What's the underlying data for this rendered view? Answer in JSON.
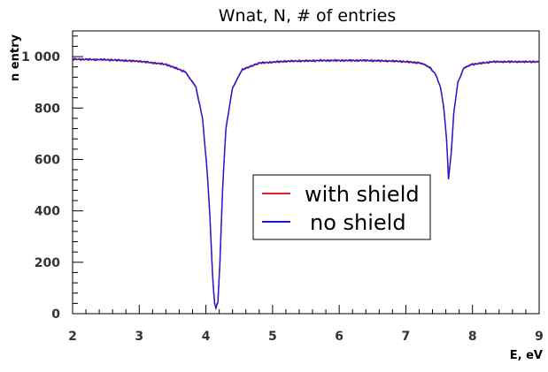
{
  "chart_data": {
    "type": "line",
    "title": "Wnat, N,  # of entries",
    "xlabel": "E, eV",
    "ylabel": "n entry",
    "xlim": [
      2,
      9
    ],
    "ylim": [
      0,
      1100
    ],
    "x_ticks": [
      2,
      3,
      4,
      5,
      6,
      7,
      8,
      9
    ],
    "y_ticks": [
      0,
      200,
      400,
      600,
      800,
      1000
    ],
    "y_tick_labels": [
      "0",
      "200",
      "400",
      "600",
      "800",
      "1 000"
    ],
    "grid": false,
    "legend_position": "center",
    "series": [
      {
        "name": "with shield",
        "color": "#e8202a",
        "x": [
          2.0,
          2.5,
          3.0,
          3.4,
          3.7,
          3.85,
          3.95,
          4.02,
          4.06,
          4.1,
          4.13,
          4.15,
          4.18,
          4.21,
          4.25,
          4.3,
          4.4,
          4.55,
          4.8,
          5.2,
          5.8,
          6.4,
          6.9,
          7.2,
          7.35,
          7.45,
          7.52,
          7.57,
          7.61,
          7.64,
          7.68,
          7.72,
          7.78,
          7.87,
          8.0,
          8.3,
          8.7,
          9.0
        ],
        "y": [
          990,
          988,
          982,
          970,
          940,
          880,
          760,
          550,
          380,
          150,
          40,
          22,
          45,
          200,
          480,
          720,
          880,
          950,
          975,
          982,
          985,
          985,
          982,
          976,
          960,
          930,
          880,
          800,
          680,
          525,
          620,
          780,
          900,
          955,
          970,
          980,
          980,
          980
        ]
      },
      {
        "name": "no shield",
        "color": "#1a1adf",
        "x": [
          2.0,
          2.5,
          3.0,
          3.4,
          3.7,
          3.85,
          3.95,
          4.02,
          4.06,
          4.1,
          4.13,
          4.15,
          4.18,
          4.21,
          4.25,
          4.3,
          4.4,
          4.55,
          4.8,
          5.2,
          5.8,
          6.4,
          6.9,
          7.2,
          7.35,
          7.45,
          7.52,
          7.57,
          7.61,
          7.64,
          7.68,
          7.72,
          7.78,
          7.87,
          8.0,
          8.3,
          8.7,
          9.0
        ],
        "y": [
          990,
          988,
          982,
          970,
          940,
          880,
          760,
          550,
          380,
          150,
          40,
          22,
          45,
          200,
          480,
          720,
          880,
          950,
          975,
          982,
          985,
          985,
          982,
          976,
          960,
          930,
          880,
          800,
          680,
          525,
          620,
          780,
          900,
          955,
          970,
          980,
          980,
          980
        ]
      }
    ]
  }
}
